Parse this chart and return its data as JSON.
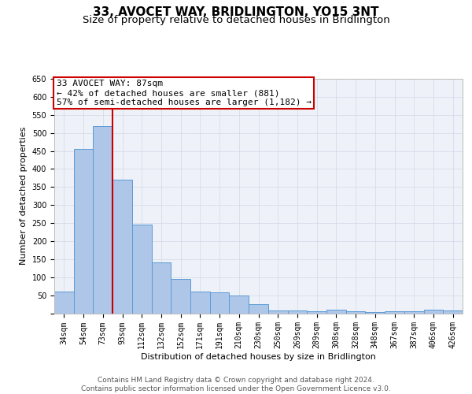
{
  "title": "33, AVOCET WAY, BRIDLINGTON, YO15 3NT",
  "subtitle": "Size of property relative to detached houses in Bridlington",
  "xlabel": "Distribution of detached houses by size in Bridlington",
  "ylabel": "Number of detached properties",
  "bar_labels": [
    "34sqm",
    "54sqm",
    "73sqm",
    "93sqm",
    "112sqm",
    "132sqm",
    "152sqm",
    "171sqm",
    "191sqm",
    "210sqm",
    "230sqm",
    "250sqm",
    "269sqm",
    "289sqm",
    "308sqm",
    "328sqm",
    "348sqm",
    "367sqm",
    "387sqm",
    "406sqm",
    "426sqm"
  ],
  "bar_values": [
    60,
    455,
    520,
    370,
    245,
    140,
    95,
    60,
    57,
    50,
    25,
    8,
    8,
    5,
    10,
    5,
    3,
    5,
    5,
    10,
    8
  ],
  "bar_color": "#aec6e8",
  "bar_edge_color": "#5b9bd5",
  "property_line_x": 2.5,
  "property_sqm": 87,
  "annotation_line1": "33 AVOCET WAY: 87sqm",
  "annotation_line2": "← 42% of detached houses are smaller (881)",
  "annotation_line3": "57% of semi-detached houses are larger (1,182) →",
  "annotation_box_color": "#cc0000",
  "vline_color": "#cc0000",
  "grid_color": "#d0d8e8",
  "background_color": "#eef2f8",
  "ylim": [
    0,
    650
  ],
  "yticks": [
    0,
    50,
    100,
    150,
    200,
    250,
    300,
    350,
    400,
    450,
    500,
    550,
    600,
    650
  ],
  "footer": "Contains HM Land Registry data © Crown copyright and database right 2024.\nContains public sector information licensed under the Open Government Licence v3.0.",
  "title_fontsize": 11,
  "subtitle_fontsize": 9.5,
  "axis_label_fontsize": 8,
  "tick_fontsize": 7,
  "footer_fontsize": 6.5,
  "annotation_fontsize": 8
}
